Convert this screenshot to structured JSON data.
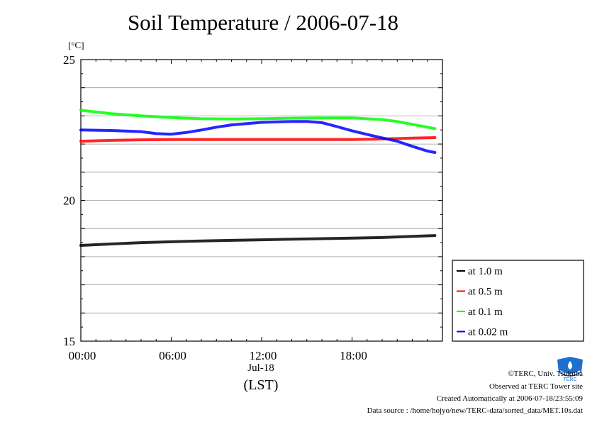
{
  "chart_data": {
    "type": "line",
    "title": "Soil Temperature / 2006-07-18",
    "ylabel": "[°C]",
    "ylim": [
      15,
      25
    ],
    "yticks": [
      15,
      20,
      25
    ],
    "xlim": [
      0,
      24
    ],
    "xticks": [
      {
        "label": "00:00",
        "hour": 0
      },
      {
        "label": "06:00",
        "hour": 6
      },
      {
        "label": "12:00",
        "hour": 12
      },
      {
        "label": "18:00",
        "hour": 18
      }
    ],
    "x_date_label": "Jul-18",
    "x_tz_label": "(LST)",
    "grid": true,
    "legend_position": "bottom-right",
    "series": [
      {
        "name": "at 1.0 m",
        "color": "#000000",
        "x": [
          0,
          2,
          4,
          6,
          8,
          10,
          12,
          14,
          16,
          18,
          20,
          22,
          23.5
        ],
        "y": [
          18.4,
          18.45,
          18.5,
          18.53,
          18.56,
          18.58,
          18.6,
          18.62,
          18.64,
          18.66,
          18.68,
          18.72,
          18.75
        ]
      },
      {
        "name": "at 0.5 m",
        "color": "#ff0000",
        "x": [
          0,
          2,
          4,
          6,
          8,
          10,
          12,
          14,
          16,
          18,
          20,
          22,
          23.5
        ],
        "y": [
          22.1,
          22.13,
          22.15,
          22.16,
          22.16,
          22.16,
          22.16,
          22.16,
          22.16,
          22.16,
          22.18,
          22.21,
          22.23
        ]
      },
      {
        "name": "at 0.1 m",
        "color": "#00ff00",
        "x": [
          0,
          2,
          4,
          6,
          8,
          10,
          12,
          14,
          16,
          18,
          20,
          21,
          22,
          23.5
        ],
        "y": [
          23.2,
          23.08,
          23.0,
          22.94,
          22.9,
          22.89,
          22.9,
          22.92,
          22.93,
          22.93,
          22.87,
          22.8,
          22.7,
          22.55
        ]
      },
      {
        "name": "at 0.02 m",
        "color": "#0000ff",
        "x": [
          0,
          2,
          4,
          5,
          6,
          7,
          8,
          9,
          10,
          12,
          14,
          15,
          16,
          17,
          18,
          19,
          20,
          21,
          22,
          23,
          23.5
        ],
        "y": [
          22.5,
          22.48,
          22.44,
          22.37,
          22.35,
          22.41,
          22.5,
          22.6,
          22.68,
          22.77,
          22.8,
          22.8,
          22.76,
          22.62,
          22.47,
          22.34,
          22.22,
          22.1,
          21.92,
          21.75,
          21.7
        ]
      }
    ]
  },
  "footer": {
    "copyright": "©TERC, Univ. Tsukuba",
    "observed": "Observed at TERC Tower site",
    "created": "Created Automatically at 2006-07-18/23:55:09",
    "source": "Data source : /home/hojyo/new/TERC-data/sorted_data/MET.10s.dat",
    "logo_text": "TERC"
  }
}
